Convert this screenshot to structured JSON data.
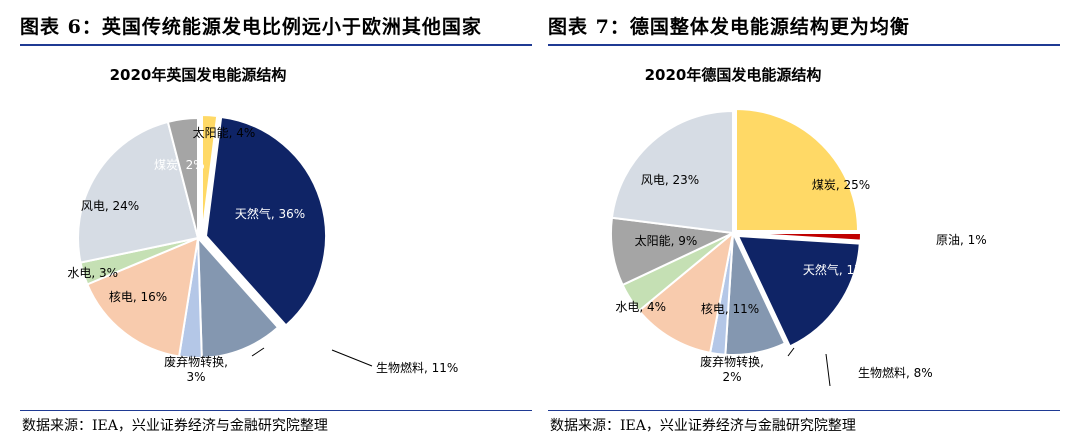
{
  "figures": [
    {
      "title": "图表 6：英国传统能源发电比例远小于欧洲其他国家",
      "source": "数据来源：IEA，兴业证券经济与金融研究院整理"
    },
    {
      "title": "图表 7：德国整体发电能源结构更为均衡",
      "source": "数据来源：IEA，兴业证券经济与金融研究院整理"
    }
  ],
  "chart_data": [
    {
      "type": "pie",
      "title": "2020年英国发电能源结构",
      "slices": [
        {
          "label": "煤炭",
          "value": 2,
          "display": "煤炭, 2%",
          "color": "#ffd966"
        },
        {
          "label": "天然气",
          "value": 36,
          "display": "天然气, 36%",
          "color": "#0f2466"
        },
        {
          "label": "生物燃料",
          "value": 11,
          "display": "生物燃料, 11%",
          "color": "#8497b0"
        },
        {
          "label": "废弃物转换",
          "value": 3,
          "display": "废弃物转换,\n3%",
          "color": "#b4c7e7"
        },
        {
          "label": "核电",
          "value": 16,
          "display": "核电, 16%",
          "color": "#f8cbad"
        },
        {
          "label": "水电",
          "value": 3,
          "display": "水电, 3%",
          "color": "#c5e0b4"
        },
        {
          "label": "风电",
          "value": 24,
          "display": "风电, 24%",
          "color": "#d6dce4"
        },
        {
          "label": "太阳能",
          "value": 4,
          "display": "太阳能, 4%",
          "color": "#a5a5a5"
        }
      ]
    },
    {
      "type": "pie",
      "title": "2020年德国发电能源结构",
      "slices": [
        {
          "label": "煤炭",
          "value": 25,
          "display": "煤炭, 25%",
          "color": "#ffd966"
        },
        {
          "label": "原油",
          "value": 1,
          "display": "原油, 1%",
          "color": "#c00000"
        },
        {
          "label": "天然气",
          "value": 17,
          "display": "天然气, 17%",
          "color": "#0f2466"
        },
        {
          "label": "生物燃料",
          "value": 8,
          "display": "生物燃料, 8%",
          "color": "#8497b0"
        },
        {
          "label": "废弃物转换",
          "value": 2,
          "display": "废弃物转换,\n2%",
          "color": "#b4c7e7"
        },
        {
          "label": "核电",
          "value": 11,
          "display": "核电, 11%",
          "color": "#f8cbad"
        },
        {
          "label": "水电",
          "value": 4,
          "display": "水电, 4%",
          "color": "#c5e0b4"
        },
        {
          "label": "太阳能",
          "value": 9,
          "display": "太阳能, 9%",
          "color": "#a5a5a5"
        },
        {
          "label": "风电",
          "value": 23,
          "display": "风电, 23%",
          "color": "#d6dce4"
        }
      ]
    }
  ]
}
